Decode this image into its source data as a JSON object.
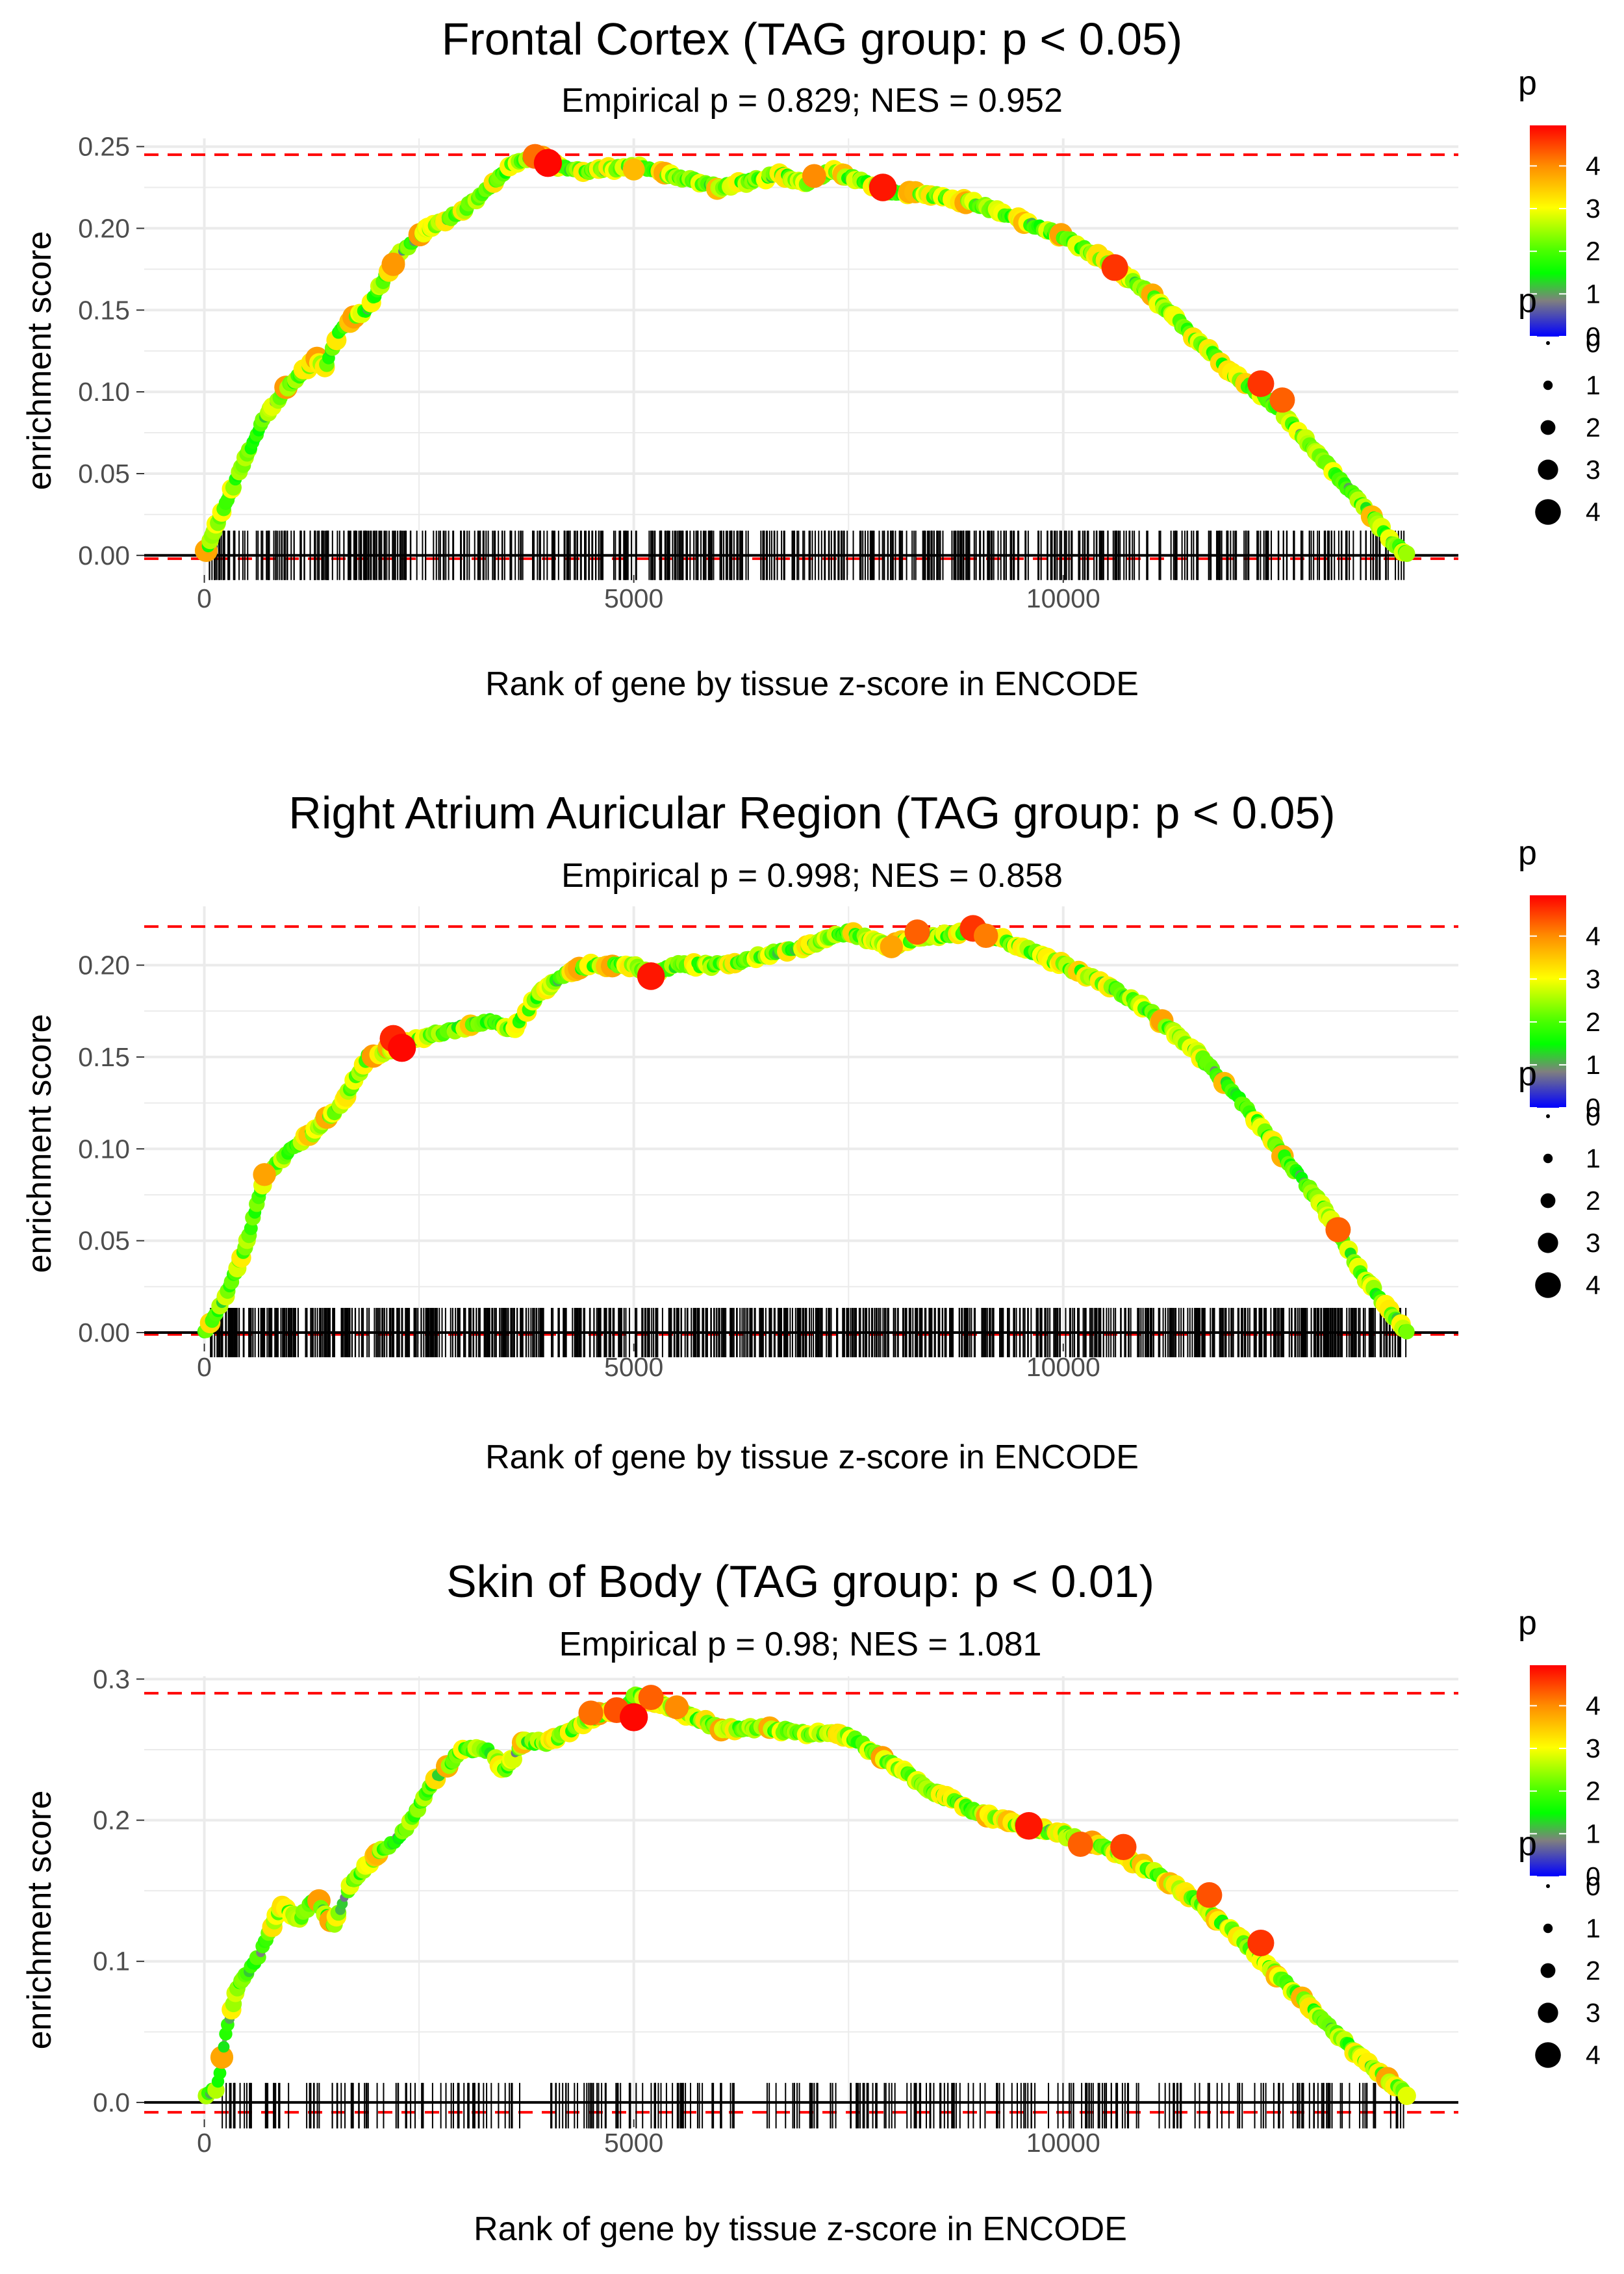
{
  "chart_data": [
    {
      "type": "line",
      "title": "Frontal Cortex (TAG group: p < 0.05)",
      "subtitle": "Empirical p = 0.829; NES = 0.952",
      "xlabel": "Rank of gene by tissue z-score in ENCODE",
      "ylabel": "enrichment score",
      "xlim": [
        -700,
        14600
      ],
      "ylim": [
        -0.012,
        0.255
      ],
      "x_ticks": [
        0,
        5000,
        10000
      ],
      "x_tick_labels": [
        "0",
        "5000",
        "10000"
      ],
      "y_ticks": [
        0,
        0.05,
        0.1,
        0.15,
        0.2,
        0.25
      ],
      "y_tick_labels": [
        "0.00",
        "0.05",
        "0.10",
        "0.15",
        "0.20",
        "0.25"
      ],
      "max_es": 0.245,
      "min_es": -0.002,
      "x_max_rank": 14000,
      "curve": {
        "x": [
          0,
          150,
          400,
          700,
          1000,
          1300,
          1400,
          1600,
          1900,
          2200,
          2600,
          3000,
          3300,
          3600,
          3850,
          4100,
          4500,
          5000,
          5500,
          6000,
          6300,
          6700,
          7000,
          7300,
          7700,
          8000,
          8500,
          9000,
          9500,
          10000,
          10500,
          11000,
          11500,
          12000,
          12500,
          13000,
          13500,
          13800,
          14000
        ],
        "y": [
          0,
          0.02,
          0.05,
          0.085,
          0.105,
          0.12,
          0.115,
          0.14,
          0.15,
          0.18,
          0.2,
          0.21,
          0.225,
          0.24,
          0.245,
          0.238,
          0.235,
          0.238,
          0.232,
          0.225,
          0.228,
          0.233,
          0.228,
          0.235,
          0.228,
          0.222,
          0.22,
          0.215,
          0.205,
          0.195,
          0.18,
          0.16,
          0.135,
          0.11,
          0.09,
          0.06,
          0.03,
          0.01,
          0
        ]
      },
      "highlight_points": [
        {
          "x": 2200,
          "y": 0.178,
          "p": 3.9
        },
        {
          "x": 3850,
          "y": 0.244,
          "p": 4.2
        },
        {
          "x": 4000,
          "y": 0.24,
          "p": 4.9
        },
        {
          "x": 5000,
          "y": 0.236,
          "p": 3.6
        },
        {
          "x": 7100,
          "y": 0.232,
          "p": 4.0
        },
        {
          "x": 7900,
          "y": 0.225,
          "p": 4.8
        },
        {
          "x": 10600,
          "y": 0.176,
          "p": 4.6
        },
        {
          "x": 12300,
          "y": 0.105,
          "p": 4.6
        },
        {
          "x": 12550,
          "y": 0.095,
          "p": 4.3
        }
      ],
      "rug_count": 620,
      "rug_seed": 11,
      "rug_ranges": [
        [
          50,
          14000
        ]
      ]
    },
    {
      "type": "line",
      "title": "Right Atrium Auricular Region (TAG group: p < 0.05)",
      "subtitle": "Empirical p = 0.998; NES = 0.858",
      "xlabel": "Rank of gene by tissue z-score in ENCODE",
      "ylabel": "enrichment score",
      "xlim": [
        -700,
        14600
      ],
      "ylim": [
        -0.006,
        0.232
      ],
      "x_ticks": [
        0,
        5000,
        10000
      ],
      "x_tick_labels": [
        "0",
        "5000",
        "10000"
      ],
      "y_ticks": [
        0,
        0.05,
        0.1,
        0.15,
        0.2
      ],
      "y_tick_labels": [
        "0.00",
        "0.05",
        "0.10",
        "0.15",
        "0.20"
      ],
      "max_es": 0.221,
      "min_es": -0.001,
      "x_max_rank": 14000,
      "curve": {
        "x": [
          0,
          250,
          500,
          700,
          1000,
          1300,
          1600,
          1900,
          2200,
          2500,
          2900,
          3300,
          3600,
          3900,
          4200,
          4500,
          4800,
          5000,
          5200,
          5500,
          6000,
          6500,
          7000,
          7500,
          8000,
          8300,
          8600,
          9000,
          9500,
          10000,
          10500,
          11000,
          11500,
          12000,
          12500,
          13000,
          13500,
          14000
        ],
        "y": [
          0,
          0.02,
          0.05,
          0.085,
          0.1,
          0.11,
          0.125,
          0.15,
          0.155,
          0.16,
          0.165,
          0.17,
          0.165,
          0.185,
          0.195,
          0.2,
          0.2,
          0.2,
          0.195,
          0.2,
          0.2,
          0.205,
          0.21,
          0.218,
          0.21,
          0.215,
          0.216,
          0.219,
          0.21,
          0.2,
          0.19,
          0.175,
          0.155,
          0.13,
          0.1,
          0.07,
          0.03,
          0
        ]
      },
      "highlight_points": [
        {
          "x": 700,
          "y": 0.086,
          "p": 3.8
        },
        {
          "x": 2200,
          "y": 0.16,
          "p": 4.7
        },
        {
          "x": 2300,
          "y": 0.155,
          "p": 4.9
        },
        {
          "x": 5200,
          "y": 0.194,
          "p": 4.8
        },
        {
          "x": 8000,
          "y": 0.21,
          "p": 3.8
        },
        {
          "x": 8300,
          "y": 0.218,
          "p": 4.3
        },
        {
          "x": 8950,
          "y": 0.22,
          "p": 4.6
        },
        {
          "x": 9100,
          "y": 0.216,
          "p": 4.1
        },
        {
          "x": 13200,
          "y": 0.056,
          "p": 4.3
        }
      ],
      "rug_count": 900,
      "rug_seed": 23,
      "rug_ranges": [
        [
          50,
          14000
        ]
      ]
    },
    {
      "type": "line",
      "title": "Skin of Body (TAG group: p < 0.01)",
      "subtitle": "Empirical p = 0.98; NES = 1.081",
      "xlabel": "Rank of gene by tissue z-score in ENCODE",
      "ylabel": "enrichment score",
      "xlim": [
        -700,
        14600
      ],
      "ylim": [
        -0.012,
        0.302
      ],
      "x_ticks": [
        0,
        5000,
        10000
      ],
      "x_tick_labels": [
        "0",
        "5000",
        "10000"
      ],
      "y_ticks": [
        0,
        0.1,
        0.2,
        0.3
      ],
      "y_tick_labels": [
        "0.0",
        "0.1",
        "0.2",
        "0.3"
      ],
      "max_es": 0.29,
      "min_es": -0.007,
      "x_max_rank": 14000,
      "curve": {
        "x": [
          0,
          150,
          250,
          400,
          600,
          900,
          1100,
          1300,
          1500,
          1700,
          2000,
          2300,
          2700,
          3000,
          3300,
          3500,
          3700,
          4000,
          4300,
          4600,
          4900,
          5000,
          5200,
          5500,
          6000,
          6500,
          7000,
          7500,
          8000,
          8500,
          9000,
          9600,
          10000,
          10500,
          11000,
          11500,
          12000,
          12500,
          13000,
          13500,
          14000
        ],
        "y": [
          0.005,
          0.01,
          0.05,
          0.085,
          0.1,
          0.14,
          0.13,
          0.145,
          0.125,
          0.155,
          0.175,
          0.19,
          0.23,
          0.25,
          0.25,
          0.235,
          0.255,
          0.255,
          0.265,
          0.275,
          0.28,
          0.29,
          0.285,
          0.278,
          0.265,
          0.265,
          0.262,
          0.26,
          0.24,
          0.22,
          0.205,
          0.195,
          0.19,
          0.18,
          0.165,
          0.145,
          0.12,
          0.09,
          0.06,
          0.03,
          0.005
        ]
      },
      "highlight_points": [
        {
          "x": 4500,
          "y": 0.276,
          "p": 4.2
        },
        {
          "x": 4800,
          "y": 0.278,
          "p": 4.4
        },
        {
          "x": 5000,
          "y": 0.273,
          "p": 4.9
        },
        {
          "x": 5200,
          "y": 0.287,
          "p": 4.3
        },
        {
          "x": 5500,
          "y": 0.28,
          "p": 4.0
        },
        {
          "x": 9600,
          "y": 0.196,
          "p": 4.8
        },
        {
          "x": 10200,
          "y": 0.183,
          "p": 4.3
        },
        {
          "x": 10700,
          "y": 0.181,
          "p": 4.5
        },
        {
          "x": 11700,
          "y": 0.147,
          "p": 4.4
        },
        {
          "x": 12300,
          "y": 0.113,
          "p": 4.6
        }
      ],
      "rug_count": 330,
      "rug_seed": 37,
      "rug_ranges": [
        [
          200,
          3700
        ],
        [
          4000,
          6200
        ],
        [
          6500,
          14000
        ]
      ]
    }
  ],
  "legend": {
    "color": {
      "title": "p",
      "tick_labels": [
        "4",
        "3",
        "2",
        "1",
        "0"
      ],
      "tick_values": [
        4,
        3,
        2,
        1,
        0
      ],
      "max_value": 4.95,
      "stops": [
        "#ff0000",
        "#ff8c00",
        "#ffff00",
        "#4cff00",
        "#00ff00",
        "#7f7f7f",
        "#0000ff"
      ]
    },
    "size": {
      "title": "p",
      "labels": [
        "0",
        "1",
        "2",
        "3",
        "4"
      ],
      "values": [
        0,
        1,
        2,
        3,
        4
      ]
    }
  },
  "colors": {
    "curve_base": "#8c8c8c",
    "max_line": "#ff0000",
    "rug": "#000000",
    "grid": "#ebebeb",
    "zero_line": "#000000"
  }
}
